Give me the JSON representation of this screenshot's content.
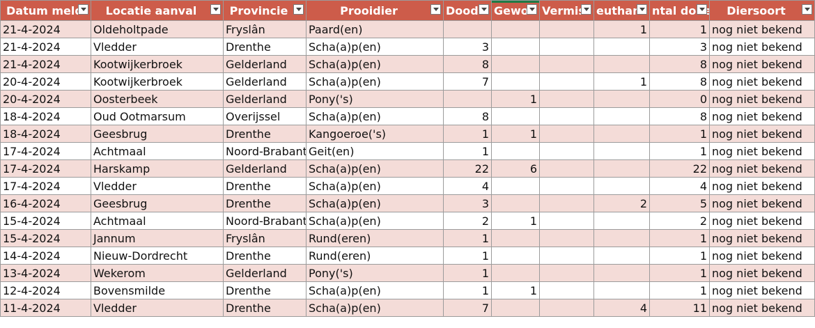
{
  "columns": [
    {
      "key": "datum",
      "label": "Datum meldi"
    },
    {
      "key": "locatie",
      "label": "Locatie aanval"
    },
    {
      "key": "provincie",
      "label": "Provincie"
    },
    {
      "key": "prooidier",
      "label": "Prooidier"
    },
    {
      "key": "dood",
      "label": "Dood"
    },
    {
      "key": "gewond",
      "label": "Gewo"
    },
    {
      "key": "vermist",
      "label": "Vermis"
    },
    {
      "key": "euthanasie",
      "label": "euthana"
    },
    {
      "key": "aantal_doden",
      "label": "ntal dode"
    },
    {
      "key": "diersoort",
      "label": "Diersoort"
    }
  ],
  "rows": [
    {
      "datum": "21-4-2024",
      "locatie": "Oldeholtpade",
      "provincie": "Fryslân",
      "prooidier": "Paard(en)",
      "dood": "",
      "gewond": "",
      "vermist": "",
      "euthanasie": "1",
      "aantal_doden": "1",
      "diersoort": "nog niet bekend"
    },
    {
      "datum": "21-4-2024",
      "locatie": "Vledder",
      "provincie": "Drenthe",
      "prooidier": "Scha(a)p(en)",
      "dood": "3",
      "gewond": "",
      "vermist": "",
      "euthanasie": "",
      "aantal_doden": "3",
      "diersoort": "nog niet bekend"
    },
    {
      "datum": "21-4-2024",
      "locatie": "Kootwijkerbroek",
      "provincie": "Gelderland",
      "prooidier": "Scha(a)p(en)",
      "dood": "8",
      "gewond": "",
      "vermist": "",
      "euthanasie": "",
      "aantal_doden": "8",
      "diersoort": "nog niet bekend"
    },
    {
      "datum": "20-4-2024",
      "locatie": "Kootwijkerbroek",
      "provincie": "Gelderland",
      "prooidier": "Scha(a)p(en)",
      "dood": "7",
      "gewond": "",
      "vermist": "",
      "euthanasie": "1",
      "aantal_doden": "8",
      "diersoort": "nog niet bekend"
    },
    {
      "datum": "20-4-2024",
      "locatie": "Oosterbeek",
      "provincie": "Gelderland",
      "prooidier": "Pony('s)",
      "dood": "",
      "gewond": "1",
      "vermist": "",
      "euthanasie": "",
      "aantal_doden": "0",
      "diersoort": "nog niet bekend"
    },
    {
      "datum": "18-4-2024",
      "locatie": "Oud Ootmarsum",
      "provincie": "Overijssel",
      "prooidier": "Scha(a)p(en)",
      "dood": "8",
      "gewond": "",
      "vermist": "",
      "euthanasie": "",
      "aantal_doden": "8",
      "diersoort": "nog niet bekend"
    },
    {
      "datum": "18-4-2024",
      "locatie": "Geesbrug",
      "provincie": "Drenthe",
      "prooidier": "Kangoeroe('s)",
      "dood": "1",
      "gewond": "1",
      "vermist": "",
      "euthanasie": "",
      "aantal_doden": "1",
      "diersoort": "nog niet bekend"
    },
    {
      "datum": "17-4-2024",
      "locatie": "Achtmaal",
      "provincie": "Noord-Brabant",
      "prooidier": "Geit(en)",
      "dood": "1",
      "gewond": "",
      "vermist": "",
      "euthanasie": "",
      "aantal_doden": "1",
      "diersoort": "nog niet bekend"
    },
    {
      "datum": "17-4-2024",
      "locatie": "Harskamp",
      "provincie": "Gelderland",
      "prooidier": "Scha(a)p(en)",
      "dood": "22",
      "gewond": "6",
      "vermist": "",
      "euthanasie": "",
      "aantal_doden": "22",
      "diersoort": "nog niet bekend"
    },
    {
      "datum": "17-4-2024",
      "locatie": "Vledder",
      "provincie": "Drenthe",
      "prooidier": "Scha(a)p(en)",
      "dood": "4",
      "gewond": "",
      "vermist": "",
      "euthanasie": "",
      "aantal_doden": "4",
      "diersoort": "nog niet bekend"
    },
    {
      "datum": "16-4-2024",
      "locatie": "Geesbrug",
      "provincie": "Drenthe",
      "prooidier": "Scha(a)p(en)",
      "dood": "3",
      "gewond": "",
      "vermist": "",
      "euthanasie": "2",
      "aantal_doden": "5",
      "diersoort": "nog niet bekend"
    },
    {
      "datum": "15-4-2024",
      "locatie": "Achtmaal",
      "provincie": "Noord-Brabant",
      "prooidier": "Scha(a)p(en)",
      "dood": "2",
      "gewond": "1",
      "vermist": "",
      "euthanasie": "",
      "aantal_doden": "2",
      "diersoort": "nog niet bekend"
    },
    {
      "datum": "15-4-2024",
      "locatie": "Jannum",
      "provincie": "Fryslân",
      "prooidier": "Rund(eren)",
      "dood": "1",
      "gewond": "",
      "vermist": "",
      "euthanasie": "",
      "aantal_doden": "1",
      "diersoort": "nog niet bekend"
    },
    {
      "datum": "14-4-2024",
      "locatie": "Nieuw-Dordrecht",
      "provincie": "Drenthe",
      "prooidier": "Rund(eren)",
      "dood": "1",
      "gewond": "",
      "vermist": "",
      "euthanasie": "",
      "aantal_doden": "1",
      "diersoort": "nog niet bekend"
    },
    {
      "datum": "13-4-2024",
      "locatie": "Wekerom",
      "provincie": "Gelderland",
      "prooidier": "Pony('s)",
      "dood": "1",
      "gewond": "",
      "vermist": "",
      "euthanasie": "",
      "aantal_doden": "1",
      "diersoort": "nog niet bekend"
    },
    {
      "datum": "12-4-2024",
      "locatie": "Bovensmilde",
      "provincie": "Drenthe",
      "prooidier": "Scha(a)p(en)",
      "dood": "1",
      "gewond": "1",
      "vermist": "",
      "euthanasie": "",
      "aantal_doden": "1",
      "diersoort": "nog niet bekend"
    },
    {
      "datum": "11-4-2024",
      "locatie": "Vledder",
      "provincie": "Drenthe",
      "prooidier": "Scha(a)p(en)",
      "dood": "7",
      "gewond": "",
      "vermist": "",
      "euthanasie": "4",
      "aantal_doden": "11",
      "diersoort": "nog niet bekend"
    }
  ],
  "colors": {
    "header_bg": "#cd5c4a",
    "band_bg": "#f4dcd8",
    "grid_line": "#9b9b9b",
    "active_column_marker": "#1f7a45"
  },
  "icons": {
    "filter": "dropdown-filter-icon"
  }
}
